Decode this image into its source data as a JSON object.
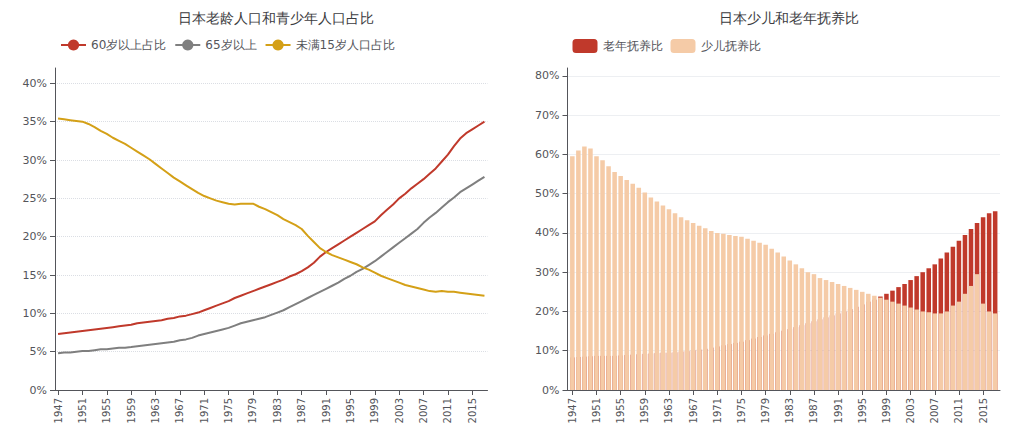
{
  "chart_data": [
    {
      "type": "line",
      "title": "日本老龄人口和青少年人口占比",
      "x": [
        1947,
        1948,
        1949,
        1950,
        1951,
        1952,
        1953,
        1954,
        1955,
        1956,
        1957,
        1958,
        1959,
        1960,
        1961,
        1962,
        1963,
        1964,
        1965,
        1966,
        1967,
        1968,
        1969,
        1970,
        1971,
        1972,
        1973,
        1974,
        1975,
        1976,
        1977,
        1978,
        1979,
        1980,
        1981,
        1982,
        1983,
        1984,
        1985,
        1986,
        1987,
        1988,
        1989,
        1990,
        1991,
        1992,
        1993,
        1994,
        1995,
        1996,
        1997,
        1998,
        1999,
        2000,
        2001,
        2002,
        2003,
        2004,
        2005,
        2006,
        2007,
        2008,
        2009,
        2010,
        2011,
        2012,
        2013,
        2014,
        2015,
        2016,
        2017
      ],
      "xlim": [
        1946.5,
        2017.5
      ],
      "xticks": [
        1947,
        1951,
        1955,
        1959,
        1963,
        1967,
        1971,
        1975,
        1979,
        1983,
        1987,
        1991,
        1995,
        1999,
        2003,
        2007,
        2011,
        2015
      ],
      "ylim": [
        0,
        42
      ],
      "yticks": [
        {
          "value": 0,
          "label": "0%"
        },
        {
          "value": 5,
          "label": "5%"
        },
        {
          "value": 10,
          "label": "10%"
        },
        {
          "value": 15,
          "label": "15%"
        },
        {
          "value": 20,
          "label": "20%"
        },
        {
          "value": 25,
          "label": "25%"
        },
        {
          "value": 30,
          "label": "30%"
        },
        {
          "value": 35,
          "label": "35%"
        },
        {
          "value": 40,
          "label": "40%"
        }
      ],
      "grid": true,
      "legend": "upper left",
      "series": [
        {
          "name": "60岁以上占比",
          "color": "#c0392b",
          "values": [
            7.3,
            7.4,
            7.5,
            7.6,
            7.7,
            7.8,
            7.9,
            8.0,
            8.1,
            8.2,
            8.3,
            8.4,
            8.5,
            8.7,
            8.8,
            8.9,
            9.0,
            9.1,
            9.3,
            9.4,
            9.6,
            9.7,
            9.9,
            10.1,
            10.4,
            10.7,
            11.0,
            11.3,
            11.6,
            12.0,
            12.3,
            12.6,
            12.9,
            13.2,
            13.5,
            13.8,
            14.1,
            14.4,
            14.8,
            15.1,
            15.5,
            16.0,
            16.6,
            17.4,
            18.0,
            18.5,
            19.0,
            19.5,
            20.0,
            20.5,
            21.0,
            21.5,
            22.0,
            22.8,
            23.5,
            24.2,
            25.0,
            25.6,
            26.3,
            26.9,
            27.5,
            28.2,
            28.9,
            29.8,
            30.7,
            31.8,
            32.8,
            33.5,
            34.0,
            34.5,
            35.0
          ]
        },
        {
          "name": "65岁以上",
          "color": "#7f7f7f",
          "values": [
            4.8,
            4.9,
            4.9,
            5.0,
            5.1,
            5.1,
            5.2,
            5.3,
            5.3,
            5.4,
            5.5,
            5.5,
            5.6,
            5.7,
            5.8,
            5.9,
            6.0,
            6.1,
            6.2,
            6.3,
            6.5,
            6.6,
            6.8,
            7.1,
            7.3,
            7.5,
            7.7,
            7.9,
            8.1,
            8.4,
            8.7,
            8.9,
            9.1,
            9.3,
            9.5,
            9.8,
            10.1,
            10.4,
            10.8,
            11.2,
            11.6,
            12.0,
            12.4,
            12.8,
            13.2,
            13.6,
            14.0,
            14.5,
            14.9,
            15.4,
            15.8,
            16.3,
            16.8,
            17.4,
            18.0,
            18.6,
            19.2,
            19.8,
            20.4,
            21.0,
            21.8,
            22.5,
            23.1,
            23.8,
            24.5,
            25.1,
            25.8,
            26.3,
            26.8,
            27.3,
            27.8
          ]
        },
        {
          "name": "未满15岁人口占比",
          "color": "#d4a017",
          "values": [
            35.4,
            35.3,
            35.2,
            35.1,
            35.0,
            34.7,
            34.3,
            33.8,
            33.4,
            32.9,
            32.5,
            32.1,
            31.6,
            31.1,
            30.6,
            30.1,
            29.5,
            28.9,
            28.3,
            27.7,
            27.2,
            26.7,
            26.2,
            25.7,
            25.3,
            25.0,
            24.7,
            24.5,
            24.3,
            24.2,
            24.3,
            24.3,
            24.3,
            23.9,
            23.6,
            23.2,
            22.8,
            22.3,
            21.9,
            21.5,
            21.0,
            20.1,
            19.3,
            18.5,
            18.0,
            17.6,
            17.3,
            17.0,
            16.7,
            16.4,
            16.0,
            15.7,
            15.3,
            14.9,
            14.6,
            14.3,
            14.0,
            13.7,
            13.5,
            13.3,
            13.1,
            12.9,
            12.8,
            12.9,
            12.8,
            12.8,
            12.7,
            12.6,
            12.5,
            12.4,
            12.3
          ]
        }
      ]
    },
    {
      "type": "bar",
      "title": "日本少儿和老年抚养比",
      "stacked": true,
      "x": [
        1947,
        1948,
        1949,
        1950,
        1951,
        1952,
        1953,
        1954,
        1955,
        1956,
        1957,
        1958,
        1959,
        1960,
        1961,
        1962,
        1963,
        1964,
        1965,
        1966,
        1967,
        1968,
        1969,
        1970,
        1971,
        1972,
        1973,
        1974,
        1975,
        1976,
        1977,
        1978,
        1979,
        1980,
        1981,
        1982,
        1983,
        1984,
        1985,
        1986,
        1987,
        1988,
        1989,
        1990,
        1991,
        1992,
        1993,
        1994,
        1995,
        1996,
        1997,
        1998,
        1999,
        2000,
        2001,
        2002,
        2003,
        2004,
        2005,
        2006,
        2007,
        2008,
        2009,
        2010,
        2011,
        2012,
        2013,
        2014,
        2015,
        2016,
        2017
      ],
      "xlim": [
        1946.2,
        2017.8
      ],
      "xticks": [
        1947,
        1951,
        1955,
        1959,
        1963,
        1967,
        1971,
        1975,
        1979,
        1983,
        1987,
        1991,
        1995,
        1999,
        2003,
        2007,
        2011,
        2015
      ],
      "ylim": [
        0,
        82
      ],
      "yticks": [
        {
          "value": 0,
          "label": "0%"
        },
        {
          "value": 10,
          "label": "10%"
        },
        {
          "value": 20,
          "label": "20%"
        },
        {
          "value": 30,
          "label": "30%"
        },
        {
          "value": 40,
          "label": "40%"
        },
        {
          "value": 50,
          "label": "50%"
        },
        {
          "value": 60,
          "label": "60%"
        },
        {
          "value": 70,
          "label": "70%"
        },
        {
          "value": 80,
          "label": "80%"
        }
      ],
      "grid": true,
      "legend": "upper left",
      "series": [
        {
          "name": "老年抚养比",
          "color": "#c0392b",
          "values": [
            8.3,
            8.4,
            8.5,
            8.6,
            8.7,
            8.7,
            8.7,
            8.7,
            8.8,
            8.9,
            9.0,
            9.1,
            9.2,
            9.3,
            9.4,
            9.5,
            9.5,
            9.6,
            9.8,
            9.9,
            10.1,
            10.3,
            10.5,
            10.8,
            11.1,
            11.4,
            11.7,
            12.0,
            12.3,
            12.7,
            13.1,
            13.5,
            13.9,
            14.3,
            14.7,
            15.1,
            15.5,
            16.0,
            16.5,
            17.0,
            17.5,
            18.0,
            18.5,
            19.0,
            19.5,
            20.0,
            20.6,
            21.2,
            21.8,
            22.5,
            23.0,
            23.8,
            24.5,
            25.3,
            26.2,
            27.0,
            28.0,
            29.0,
            30.0,
            31.0,
            32.0,
            33.5,
            35.0,
            36.5,
            38.0,
            39.5,
            41.0,
            42.5,
            44.0,
            45.0,
            45.5
          ]
        },
        {
          "name": "少儿抚养比",
          "color": "#f5cba7",
          "values": [
            59.5,
            61.0,
            62.0,
            61.5,
            59.5,
            58.5,
            57.0,
            55.5,
            54.5,
            53.5,
            52.5,
            51.5,
            50.3,
            49.0,
            48.0,
            47.0,
            46.0,
            45.0,
            44.0,
            43.2,
            42.5,
            41.8,
            41.2,
            40.5,
            40.0,
            39.8,
            39.5,
            39.2,
            39.0,
            38.5,
            38.0,
            37.5,
            37.0,
            36.0,
            35.0,
            34.0,
            33.0,
            32.0,
            31.0,
            30.0,
            29.5,
            28.5,
            28.0,
            27.5,
            27.0,
            26.5,
            26.0,
            25.5,
            25.0,
            24.5,
            24.0,
            23.5,
            23.0,
            22.5,
            22.0,
            21.5,
            21.0,
            20.5,
            20.0,
            19.8,
            19.5,
            19.5,
            20.0,
            21.5,
            22.5,
            24.5,
            26.5,
            29.5,
            22.0,
            20.0,
            19.5
          ]
        }
      ]
    }
  ]
}
